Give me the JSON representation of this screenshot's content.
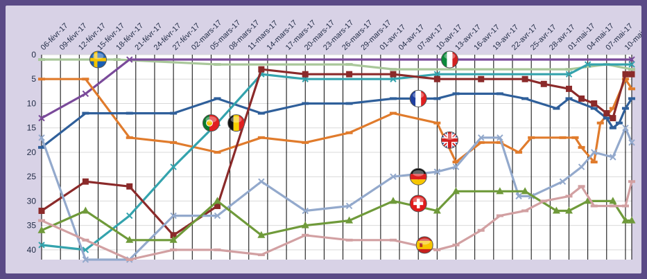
{
  "chart_data": {
    "type": "line",
    "title": "",
    "xlabel": "",
    "ylabel": "",
    "ylim": [
      0,
      42
    ],
    "y_inverted": true,
    "y_ticks": [
      "0",
      "5",
      "10",
      "15",
      "20",
      "25",
      "30",
      "35",
      "40"
    ],
    "x_tick_labels": [
      "06-févr-17",
      "09-févr-17",
      "12-févr-17",
      "15-févr-17",
      "18-févr-17",
      "21-févr-17",
      "24-févr-17",
      "27-févr-17",
      "02-mars-17",
      "05-mars-17",
      "08-mars-17",
      "11-mars-17",
      "14-mars-17",
      "17-mars-17",
      "20-mars-17",
      "23-mars-17",
      "26-mars-17",
      "29-mars-17",
      "01-avr-17",
      "04-avr-17",
      "07-avr-17",
      "10-avr-17",
      "13-avr-17",
      "16-avr-17",
      "19-avr-17",
      "22-avr-17",
      "25-avr-17",
      "28-avr-17",
      "01-mai-17",
      "04-mai-17",
      "07-mai-17",
      "10-mai-17"
    ],
    "x_range_days": [
      0,
      94
    ],
    "grid": true,
    "series": [
      {
        "color": "#a9c79a",
        "marker": "dash",
        "points": [
          [
            0,
            1
          ],
          [
            12,
            1
          ],
          [
            28,
            2
          ],
          [
            49,
            2
          ],
          [
            56,
            3
          ],
          [
            84,
            3
          ],
          [
            90,
            2
          ],
          [
            94,
            3
          ]
        ]
      },
      {
        "color": "#7a4a9a",
        "marker": "x",
        "points": [
          [
            0,
            13
          ],
          [
            7,
            8
          ],
          [
            14,
            1
          ],
          [
            94,
            1
          ]
        ]
      },
      {
        "color": "#e07b2c",
        "marker": "dash",
        "points": [
          [
            0,
            5
          ],
          [
            7,
            5
          ],
          [
            14,
            17
          ],
          [
            21,
            18
          ],
          [
            28,
            20
          ],
          [
            35,
            17
          ],
          [
            42,
            18
          ],
          [
            49,
            16
          ],
          [
            56,
            12
          ],
          [
            63,
            14
          ],
          [
            66,
            22
          ],
          [
            70,
            18
          ],
          [
            73,
            18
          ],
          [
            76,
            20
          ],
          [
            78,
            17
          ],
          [
            83,
            17
          ],
          [
            85,
            17
          ],
          [
            86,
            19
          ],
          [
            88,
            22
          ],
          [
            89,
            14
          ],
          [
            91,
            11
          ],
          [
            93,
            5
          ],
          [
            94,
            7
          ]
        ]
      },
      {
        "color": "#2f5f9a",
        "marker": "dash",
        "points": [
          [
            0,
            19
          ],
          [
            7,
            12
          ],
          [
            14,
            12
          ],
          [
            21,
            12
          ],
          [
            28,
            9
          ],
          [
            35,
            12
          ],
          [
            42,
            10
          ],
          [
            49,
            10
          ],
          [
            56,
            9
          ],
          [
            63,
            9
          ],
          [
            66,
            8
          ],
          [
            73,
            8
          ],
          [
            77,
            9
          ],
          [
            82,
            11
          ],
          [
            84,
            9
          ],
          [
            88,
            11
          ],
          [
            90,
            13
          ],
          [
            91,
            15
          ],
          [
            92,
            14
          ],
          [
            93,
            11
          ],
          [
            94,
            9
          ]
        ]
      },
      {
        "color": "#34a3ad",
        "marker": "x",
        "points": [
          [
            0,
            39
          ],
          [
            7,
            40
          ],
          [
            14,
            33
          ],
          [
            21,
            23
          ],
          [
            28,
            14
          ],
          [
            35,
            4
          ],
          [
            42,
            5
          ],
          [
            56,
            5
          ],
          [
            63,
            4
          ],
          [
            84,
            4
          ],
          [
            87,
            2
          ],
          [
            94,
            2
          ]
        ]
      },
      {
        "color": "#8b2a2a",
        "marker": "square",
        "points": [
          [
            0,
            32
          ],
          [
            7,
            26
          ],
          [
            14,
            27
          ],
          [
            21,
            37
          ],
          [
            28,
            31
          ],
          [
            35,
            3
          ],
          [
            42,
            4
          ],
          [
            49,
            4
          ],
          [
            56,
            4
          ],
          [
            63,
            5
          ],
          [
            70,
            5
          ],
          [
            77,
            5
          ],
          [
            80,
            6
          ],
          [
            84,
            7
          ],
          [
            86,
            9
          ],
          [
            88,
            10
          ],
          [
            90,
            12
          ],
          [
            91,
            13
          ],
          [
            93,
            4
          ],
          [
            94,
            4
          ]
        ]
      },
      {
        "color": "#93a9cc",
        "marker": "x",
        "points": [
          [
            0,
            17
          ],
          [
            7,
            42
          ],
          [
            14,
            42
          ],
          [
            21,
            33
          ],
          [
            28,
            33
          ],
          [
            35,
            26
          ],
          [
            42,
            32
          ],
          [
            49,
            31
          ],
          [
            56,
            25
          ],
          [
            63,
            24
          ],
          [
            66,
            23
          ],
          [
            70,
            17
          ],
          [
            73,
            17
          ],
          [
            76,
            29
          ],
          [
            78,
            29
          ],
          [
            83,
            26
          ],
          [
            86,
            23
          ],
          [
            88,
            20
          ],
          [
            91,
            21
          ],
          [
            93,
            15
          ],
          [
            94,
            18
          ]
        ]
      },
      {
        "color": "#6f9a3a",
        "marker": "triangle",
        "points": [
          [
            0,
            36
          ],
          [
            7,
            32
          ],
          [
            14,
            38
          ],
          [
            21,
            38
          ],
          [
            28,
            30
          ],
          [
            35,
            37
          ],
          [
            42,
            35
          ],
          [
            49,
            34
          ],
          [
            56,
            30
          ],
          [
            63,
            32
          ],
          [
            66,
            28
          ],
          [
            73,
            28
          ],
          [
            77,
            28
          ],
          [
            82,
            32
          ],
          [
            84,
            32
          ],
          [
            87,
            30
          ],
          [
            91,
            30
          ],
          [
            93,
            34
          ],
          [
            94,
            34
          ]
        ]
      },
      {
        "color": "#d2a0a2",
        "marker": "dash",
        "points": [
          [
            0,
            34
          ],
          [
            7,
            38
          ],
          [
            14,
            42
          ],
          [
            21,
            40
          ],
          [
            28,
            40
          ],
          [
            35,
            41
          ],
          [
            42,
            37
          ],
          [
            49,
            38
          ],
          [
            56,
            38
          ],
          [
            63,
            40
          ],
          [
            66,
            39
          ],
          [
            70,
            36
          ],
          [
            73,
            33
          ],
          [
            77,
            32
          ],
          [
            80,
            30
          ],
          [
            84,
            29
          ],
          [
            86,
            27
          ],
          [
            88,
            31
          ],
          [
            91,
            31
          ],
          [
            93,
            31
          ],
          [
            94,
            26
          ]
        ]
      }
    ],
    "flags": [
      {
        "name": "sweden-flag-icon",
        "day": 9,
        "y": 1
      },
      {
        "name": "italy-flag-icon",
        "day": 65,
        "y": 1
      },
      {
        "name": "france-flag-icon",
        "day": 60,
        "y": 9
      },
      {
        "name": "portugal-flag-icon",
        "day": 27,
        "y": 14
      },
      {
        "name": "belgium-flag-icon",
        "day": 31,
        "y": 14
      },
      {
        "name": "uk-flag-icon",
        "day": 65,
        "y": 17.5
      },
      {
        "name": "germany-flag-icon",
        "day": 60,
        "y": 25
      },
      {
        "name": "switzerland-flag-icon",
        "day": 60,
        "y": 30.5
      },
      {
        "name": "spain-flag-icon",
        "day": 61,
        "y": 39
      }
    ]
  }
}
